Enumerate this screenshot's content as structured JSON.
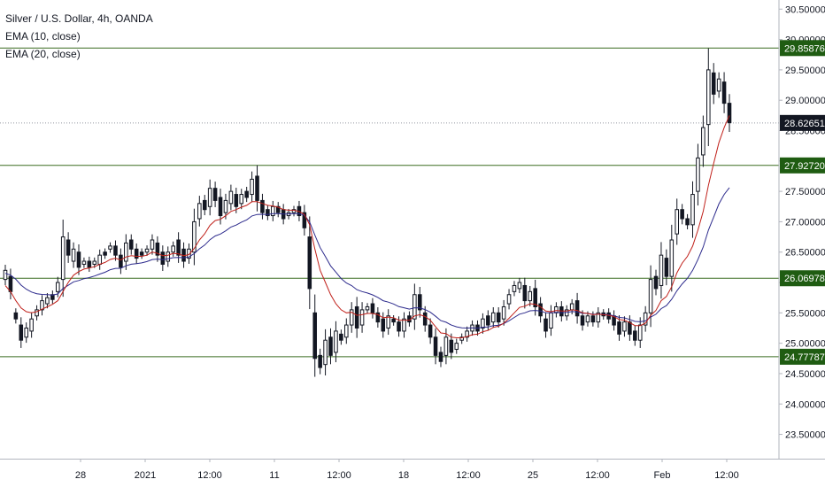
{
  "chart_data": {
    "type": "candlestick",
    "title": "Silver / U.S. Dollar, 4h, OANDA",
    "indicators": [
      "EMA (10, close)",
      "EMA (20, close)"
    ],
    "x_tick_labels": [
      "28",
      "2021",
      "12:00",
      "11",
      "12:00",
      "18",
      "12:00",
      "25",
      "12:00",
      "Feb",
      "12:00"
    ],
    "y_tick_labels": [
      "30.50000",
      "30.00000",
      "29.50000",
      "29.00000",
      "28.50000",
      "28.00000",
      "27.50000",
      "27.00000",
      "26.50000",
      "26.00000",
      "25.50000",
      "25.00000",
      "24.50000",
      "24.00000",
      "23.50000"
    ],
    "ylim": [
      23.1,
      30.65
    ],
    "horizontal_levels": [
      29.85876,
      27.9272,
      26.06978,
      24.77787
    ],
    "horizontal_level_labels": [
      "29.85876",
      "27.92720",
      "26.06978",
      "24.77787"
    ],
    "last_price": 28.62651,
    "last_price_label": "28.62651",
    "ohlc_path": [
      [
        26.05,
        26.2
      ],
      [
        26.1,
        25.85
      ],
      [
        25.5,
        25.4
      ],
      [
        25.3,
        25.05
      ],
      [
        25.1,
        25.25
      ],
      [
        25.2,
        25.4
      ],
      [
        25.45,
        25.55
      ],
      [
        25.55,
        25.7
      ],
      [
        25.65,
        25.75
      ],
      [
        25.8,
        25.72
      ],
      [
        25.85,
        26.0
      ],
      [
        26.05,
        26.75
      ],
      [
        26.7,
        26.45
      ],
      [
        26.35,
        26.55
      ],
      [
        26.5,
        26.25
      ],
      [
        26.3,
        26.35
      ],
      [
        26.35,
        26.25
      ],
      [
        26.3,
        26.35
      ],
      [
        26.3,
        26.45
      ],
      [
        26.5,
        26.45
      ],
      [
        26.55,
        26.6
      ],
      [
        26.6,
        26.45
      ],
      [
        26.45,
        26.25
      ],
      [
        26.35,
        26.65
      ],
      [
        26.7,
        26.55
      ],
      [
        26.55,
        26.4
      ],
      [
        26.5,
        26.45
      ],
      [
        26.5,
        26.55
      ],
      [
        26.55,
        26.7
      ],
      [
        26.65,
        26.45
      ],
      [
        26.5,
        26.3
      ],
      [
        26.35,
        26.5
      ],
      [
        26.5,
        26.6
      ],
      [
        26.7,
        26.45
      ],
      [
        26.55,
        26.35
      ],
      [
        26.4,
        26.55
      ],
      [
        26.5,
        27.0
      ],
      [
        27.05,
        27.3
      ],
      [
        27.35,
        27.2
      ],
      [
        27.25,
        27.55
      ],
      [
        27.55,
        27.35
      ],
      [
        27.4,
        27.1
      ],
      [
        27.15,
        27.35
      ],
      [
        27.3,
        27.5
      ],
      [
        27.45,
        27.25
      ],
      [
        27.3,
        27.45
      ],
      [
        27.5,
        27.4
      ],
      [
        27.45,
        27.7
      ],
      [
        27.75,
        27.35
      ],
      [
        27.35,
        27.15
      ],
      [
        27.2,
        27.1
      ],
      [
        27.1,
        27.25
      ],
      [
        27.25,
        27.15
      ],
      [
        27.2,
        27.05
      ],
      [
        27.1,
        27.15
      ],
      [
        27.15,
        27.2
      ],
      [
        27.25,
        27.1
      ],
      [
        27.15,
        26.9
      ],
      [
        26.75,
        25.9
      ],
      [
        25.5,
        24.75
      ],
      [
        24.8,
        24.6
      ],
      [
        24.65,
        25.05
      ],
      [
        25.1,
        24.8
      ],
      [
        24.85,
        25.2
      ],
      [
        25.15,
        25.05
      ],
      [
        25.1,
        25.3
      ],
      [
        25.3,
        25.55
      ],
      [
        25.6,
        25.25
      ],
      [
        25.3,
        25.55
      ],
      [
        25.55,
        25.6
      ],
      [
        25.65,
        25.5
      ],
      [
        25.5,
        25.35
      ],
      [
        25.4,
        25.2
      ],
      [
        25.25,
        25.45
      ],
      [
        25.4,
        25.35
      ],
      [
        25.35,
        25.2
      ],
      [
        25.2,
        25.4
      ],
      [
        25.45,
        25.35
      ],
      [
        25.4,
        25.8
      ],
      [
        25.8,
        25.55
      ],
      [
        25.5,
        25.3
      ],
      [
        25.3,
        25.1
      ],
      [
        25.1,
        24.8
      ],
      [
        24.85,
        24.7
      ],
      [
        24.8,
        25.1
      ],
      [
        25.05,
        24.85
      ],
      [
        24.9,
        25.0
      ],
      [
        25.05,
        25.1
      ],
      [
        25.1,
        25.2
      ],
      [
        25.2,
        25.3
      ],
      [
        25.3,
        25.2
      ],
      [
        25.25,
        25.4
      ],
      [
        25.45,
        25.3
      ],
      [
        25.35,
        25.5
      ],
      [
        25.5,
        25.35
      ],
      [
        25.4,
        25.6
      ],
      [
        25.65,
        25.8
      ],
      [
        25.85,
        25.95
      ],
      [
        25.9,
        26.0
      ],
      [
        25.95,
        25.7
      ],
      [
        25.7,
        25.85
      ],
      [
        25.9,
        25.6
      ],
      [
        25.65,
        25.45
      ],
      [
        25.4,
        25.2
      ],
      [
        25.25,
        25.5
      ],
      [
        25.5,
        25.6
      ],
      [
        25.6,
        25.45
      ],
      [
        25.45,
        25.55
      ],
      [
        25.55,
        25.65
      ],
      [
        25.7,
        25.45
      ],
      [
        25.45,
        25.3
      ],
      [
        25.35,
        25.45
      ],
      [
        25.45,
        25.35
      ],
      [
        25.35,
        25.5
      ],
      [
        25.5,
        25.45
      ],
      [
        25.5,
        25.4
      ],
      [
        25.45,
        25.3
      ],
      [
        25.35,
        25.15
      ],
      [
        25.2,
        25.35
      ],
      [
        25.35,
        25.15
      ],
      [
        25.2,
        25.05
      ],
      [
        25.05,
        25.3
      ],
      [
        25.3,
        25.5
      ],
      [
        25.5,
        26.05
      ],
      [
        26.1,
        25.9
      ],
      [
        25.95,
        26.45
      ],
      [
        26.4,
        26.1
      ],
      [
        26.1,
        26.7
      ],
      [
        26.8,
        27.2
      ],
      [
        27.2,
        27.05
      ],
      [
        27.05,
        26.95
      ],
      [
        26.95,
        27.45
      ],
      [
        27.5,
        28.05
      ],
      [
        28.1,
        28.55
      ],
      [
        28.6,
        29.5
      ],
      [
        29.45,
        29.1
      ],
      [
        29.15,
        29.35
      ],
      [
        29.3,
        28.95
      ],
      [
        28.95,
        28.63
      ]
    ],
    "ema10": [
      25.95,
      25.85,
      25.7,
      25.58,
      25.52,
      25.5,
      25.52,
      25.56,
      25.6,
      25.64,
      25.7,
      25.85,
      26.0,
      26.12,
      26.18,
      26.22,
      26.24,
      26.26,
      26.3,
      26.33,
      26.38,
      26.4,
      26.37,
      26.42,
      26.44,
      26.43,
      26.43,
      26.45,
      26.5,
      26.48,
      26.44,
      26.45,
      26.48,
      26.47,
      26.44,
      26.46,
      26.56,
      26.7,
      26.8,
      26.94,
      27.02,
      27.04,
      27.1,
      27.17,
      27.2,
      27.24,
      27.27,
      27.33,
      27.33,
      27.3,
      27.27,
      27.26,
      27.24,
      27.2,
      27.19,
      27.19,
      27.17,
      27.12,
      26.95,
      26.55,
      26.2,
      26.0,
      25.8,
      25.65,
      25.55,
      25.5,
      25.51,
      25.46,
      25.47,
      25.49,
      25.49,
      25.47,
      25.42,
      25.43,
      25.42,
      25.38,
      25.38,
      25.38,
      25.45,
      25.47,
      25.44,
      25.38,
      25.27,
      25.17,
      25.16,
      25.1,
      25.09,
      25.09,
      25.11,
      25.14,
      25.15,
      25.19,
      25.21,
      25.26,
      25.28,
      25.33,
      25.41,
      25.5,
      25.59,
      25.61,
      25.65,
      25.64,
      25.6,
      25.53,
      25.52,
      25.54,
      25.53,
      25.53,
      25.55,
      25.54,
      25.5,
      25.49,
      25.47,
      25.48,
      25.47,
      25.46,
      25.44,
      25.39,
      25.38,
      25.34,
      25.29,
      25.29,
      25.33,
      25.46,
      25.54,
      25.7,
      25.77,
      25.93,
      26.16,
      26.32,
      26.43,
      26.6,
      26.86,
      27.17,
      27.6,
      27.96,
      28.3,
      28.55,
      28.75
    ]
  }
}
